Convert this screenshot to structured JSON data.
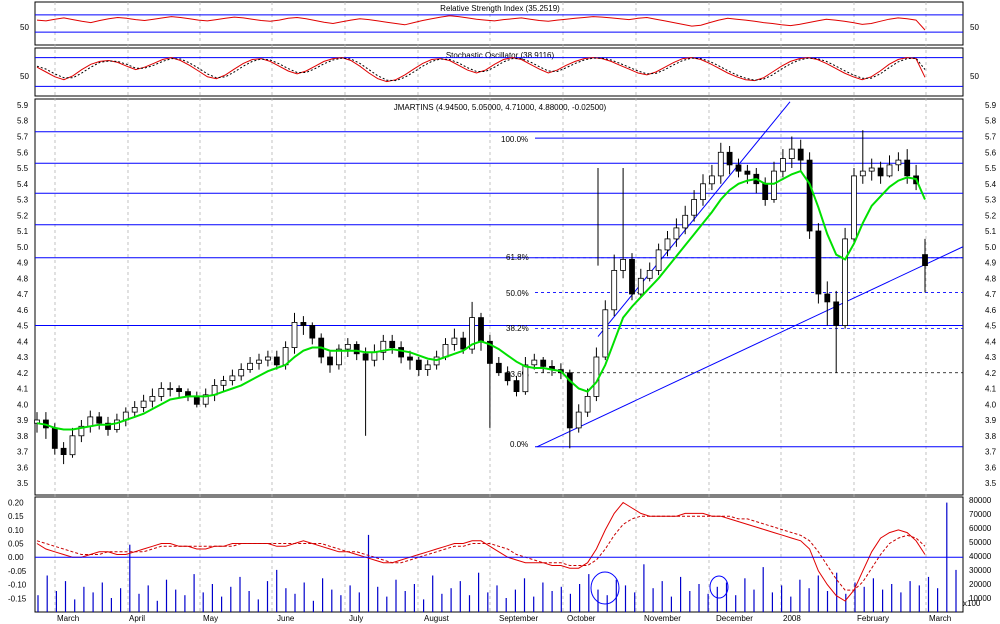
{
  "colors": {
    "background": "#ffffff",
    "panel_border": "#000000",
    "level_line": "#0000ff",
    "grid": "#b4b4b4",
    "candle": "#000000",
    "moving_average": "#00e000",
    "indicator_main": "#e00000",
    "indicator_signal": "#c80000",
    "volume": "#0000cc",
    "trendline": "#0000ff"
  },
  "months": [
    "March",
    "April",
    "May",
    "June",
    "July",
    "August",
    "September",
    "October",
    "November",
    "December",
    "2008",
    "February",
    "March"
  ],
  "chart_data": [
    {
      "type": "line",
      "title": "Relative Strength Index (35.2519)",
      "y_tick_labels": [
        "50"
      ],
      "reference_levels": [
        70,
        30
      ],
      "last_value": 35.2519,
      "series": [
        {
          "values": [
            58,
            56,
            60,
            63,
            59,
            55,
            52,
            57,
            61,
            64,
            62,
            59,
            57,
            60,
            63,
            66,
            64,
            61,
            58,
            56,
            59,
            62,
            65,
            63,
            60,
            57,
            55,
            58,
            62,
            64,
            61,
            57,
            53,
            50,
            54,
            58,
            61,
            59,
            56,
            53,
            50,
            47,
            52,
            57,
            61,
            65,
            68,
            66,
            63,
            60,
            58,
            56,
            59,
            61,
            63,
            60,
            57,
            55,
            58,
            60,
            62,
            64,
            66,
            65,
            63,
            61,
            59,
            62,
            64,
            60,
            56,
            52,
            48,
            44,
            46,
            52,
            58,
            62,
            60,
            58,
            55,
            52,
            50,
            47,
            45,
            48,
            52,
            56,
            60,
            58,
            55,
            52,
            48,
            50,
            55,
            60,
            63,
            61,
            58,
            35
          ]
        }
      ]
    },
    {
      "type": "line",
      "title": "Stochastic Oscillator (38.9116)",
      "y_tick_labels": [
        "50"
      ],
      "reference_levels": [
        80,
        20
      ],
      "last_value": 38.9116,
      "series": [
        {
          "values": [
            60,
            50,
            40,
            34,
            42,
            55,
            66,
            72,
            74,
            70,
            62,
            55,
            60,
            68,
            76,
            80,
            74,
            64,
            52,
            40,
            36,
            44,
            56,
            68,
            76,
            78,
            72,
            62,
            52,
            46,
            52,
            62,
            72,
            78,
            80,
            74,
            62,
            48,
            36,
            30,
            34,
            44,
            56,
            68,
            76,
            78,
            74,
            64,
            54,
            48,
            54,
            66,
            76,
            80,
            76,
            66,
            56,
            48,
            54,
            64,
            72,
            78,
            80,
            78,
            72,
            64,
            56,
            48,
            44,
            50,
            60,
            70,
            78,
            80,
            76,
            68,
            58,
            48,
            40,
            34,
            32,
            38,
            50,
            62,
            72,
            78,
            80,
            76,
            68,
            58,
            48,
            40,
            34,
            40,
            52,
            66,
            76,
            80,
            78,
            39
          ]
        },
        {
          "values": [
            62,
            56,
            46,
            38,
            38,
            48,
            60,
            70,
            73,
            72,
            66,
            58,
            58,
            64,
            72,
            78,
            77,
            69,
            58,
            46,
            38,
            40,
            50,
            62,
            72,
            77,
            75,
            67,
            57,
            49,
            49,
            57,
            67,
            75,
            79,
            77,
            68,
            55,
            42,
            33,
            32,
            39,
            50,
            62,
            72,
            77,
            76,
            69,
            59,
            51,
            51,
            60,
            71,
            78,
            78,
            71,
            61,
            52,
            51,
            59,
            68,
            75,
            79,
            79,
            75,
            68,
            60,
            52,
            46,
            47,
            55,
            65,
            74,
            79,
            78,
            72,
            63,
            53,
            44,
            37,
            33,
            35,
            44,
            56,
            67,
            75,
            79,
            78,
            72,
            63,
            53,
            44,
            37,
            37,
            46,
            59,
            71,
            78,
            79,
            55
          ]
        }
      ]
    },
    {
      "type": "bar",
      "title": "JMARTINS (4.94500, 5.05000, 4.71000, 4.88000, -0.02500)",
      "y_tick_labels": [
        "3.5",
        "3.6",
        "3.7",
        "3.8",
        "3.9",
        "4.0",
        "4.1",
        "4.2",
        "4.3",
        "4.4",
        "4.5",
        "4.6",
        "4.7",
        "4.8",
        "4.9",
        "5.0",
        "5.1",
        "5.2",
        "5.3",
        "5.4",
        "5.5",
        "5.6",
        "5.7",
        "5.8",
        "5.9"
      ],
      "ylim": [
        3.5,
        5.9
      ],
      "fibonacci_labels": [
        "100.0%",
        "61.8%",
        "50.0%",
        "38.2%",
        "23.6%",
        "0.0%"
      ],
      "horizontal_levels": [
        5.73,
        5.53,
        5.34,
        5.14,
        4.93,
        4.5
      ],
      "close": [
        3.9,
        3.85,
        3.72,
        3.68,
        3.8,
        3.86,
        3.92,
        3.88,
        3.84,
        3.9,
        3.95,
        3.98,
        4.02,
        4.05,
        4.1,
        4.1,
        4.08,
        4.05,
        4.0,
        4.06,
        4.12,
        4.15,
        4.18,
        4.22,
        4.26,
        4.28,
        4.3,
        4.25,
        4.36,
        4.52,
        4.5,
        4.42,
        4.3,
        4.25,
        4.35,
        4.38,
        4.32,
        4.28,
        4.33,
        4.4,
        4.36,
        4.3,
        4.28,
        4.22,
        4.25,
        4.3,
        4.38,
        4.42,
        4.35,
        4.55,
        4.4,
        4.26,
        4.2,
        4.15,
        4.08,
        4.25,
        4.28,
        4.24,
        4.22,
        4.2,
        3.85,
        3.95,
        4.05,
        4.3,
        4.6,
        4.85,
        4.92,
        4.7,
        4.8,
        4.85,
        4.98,
        5.05,
        5.12,
        5.2,
        5.3,
        5.4,
        5.45,
        5.6,
        5.52,
        5.48,
        5.46,
        5.4,
        5.3,
        5.48,
        5.56,
        5.62,
        5.55,
        5.1,
        4.7,
        4.65,
        4.5,
        5.05,
        5.45,
        5.48,
        5.5,
        5.45,
        5.52,
        5.55,
        5.45,
        5.4,
        4.88
      ],
      "open": [
        3.88,
        3.9,
        3.85,
        3.72,
        3.68,
        3.8,
        3.86,
        3.92,
        3.88,
        3.84,
        3.9,
        3.95,
        3.98,
        4.02,
        4.05,
        4.1,
        4.1,
        4.08,
        4.05,
        4.0,
        4.06,
        4.12,
        4.15,
        4.18,
        4.22,
        4.26,
        4.28,
        4.3,
        4.25,
        4.36,
        4.52,
        4.5,
        4.42,
        4.3,
        4.25,
        4.35,
        4.38,
        4.32,
        4.28,
        4.33,
        4.4,
        4.36,
        4.3,
        4.28,
        4.22,
        4.25,
        4.3,
        4.38,
        4.42,
        4.35,
        4.55,
        4.4,
        4.26,
        4.2,
        4.15,
        4.08,
        4.25,
        4.28,
        4.24,
        4.22,
        4.2,
        3.85,
        3.95,
        4.05,
        4.3,
        4.6,
        4.85,
        4.92,
        4.7,
        4.8,
        4.85,
        4.98,
        5.05,
        5.12,
        5.2,
        5.3,
        5.4,
        5.45,
        5.6,
        5.52,
        5.48,
        5.46,
        5.4,
        5.3,
        5.48,
        5.56,
        5.62,
        5.55,
        5.1,
        4.7,
        4.65,
        4.5,
        5.05,
        5.45,
        5.48,
        5.5,
        5.45,
        5.52,
        5.55,
        5.45,
        4.95
      ],
      "high": [
        3.95,
        3.95,
        3.88,
        3.76,
        3.85,
        3.9,
        3.96,
        3.95,
        3.92,
        3.94,
        3.98,
        4.02,
        4.06,
        4.1,
        4.14,
        4.14,
        4.12,
        4.1,
        4.08,
        4.1,
        4.16,
        4.18,
        4.22,
        4.26,
        4.3,
        4.32,
        4.34,
        4.34,
        4.4,
        4.58,
        4.56,
        4.52,
        4.45,
        4.34,
        4.38,
        4.42,
        4.4,
        4.36,
        4.38,
        4.44,
        4.44,
        4.4,
        4.34,
        4.3,
        4.28,
        4.34,
        4.42,
        4.48,
        4.46,
        4.65,
        4.58,
        4.44,
        4.3,
        4.24,
        4.18,
        4.3,
        4.32,
        4.3,
        4.28,
        4.26,
        4.22,
        4.0,
        4.1,
        4.36,
        4.66,
        4.95,
        5.5,
        4.96,
        4.86,
        4.9,
        5.02,
        5.1,
        5.18,
        5.26,
        5.36,
        5.46,
        5.52,
        5.66,
        5.64,
        5.56,
        5.52,
        5.5,
        5.44,
        5.54,
        5.62,
        5.7,
        5.68,
        5.6,
        5.15,
        4.78,
        4.72,
        5.12,
        5.5,
        5.74,
        5.56,
        5.54,
        5.58,
        5.6,
        5.62,
        5.52,
        5.05
      ],
      "low": [
        3.82,
        3.78,
        3.68,
        3.62,
        3.66,
        3.76,
        3.82,
        3.84,
        3.8,
        3.82,
        3.86,
        3.92,
        3.95,
        3.98,
        4.02,
        4.05,
        4.04,
        4.02,
        3.98,
        3.98,
        4.02,
        4.08,
        4.12,
        4.15,
        4.2,
        4.22,
        4.24,
        4.22,
        4.22,
        4.32,
        4.44,
        4.38,
        4.26,
        4.2,
        4.22,
        4.3,
        4.28,
        3.8,
        4.24,
        4.28,
        4.32,
        4.26,
        4.22,
        4.18,
        4.18,
        4.22,
        4.28,
        4.34,
        4.32,
        4.32,
        4.34,
        3.85,
        4.18,
        4.12,
        4.05,
        4.06,
        4.22,
        4.2,
        4.18,
        4.16,
        3.72,
        3.82,
        3.92,
        4.02,
        4.28,
        4.56,
        4.8,
        4.66,
        4.68,
        4.78,
        4.82,
        4.94,
        5.0,
        5.08,
        5.16,
        5.26,
        5.36,
        5.4,
        5.46,
        5.44,
        5.4,
        5.34,
        5.26,
        5.28,
        5.44,
        5.5,
        5.48,
        5.05,
        4.64,
        4.5,
        4.2,
        4.48,
        5.02,
        5.4,
        5.42,
        5.4,
        5.44,
        5.48,
        5.4,
        5.36,
        4.71
      ],
      "moving_average": [
        3.88,
        3.87,
        3.85,
        3.84,
        3.84,
        3.85,
        3.86,
        3.87,
        3.87,
        3.88,
        3.9,
        3.92,
        3.94,
        3.97,
        4.0,
        4.03,
        4.04,
        4.05,
        4.05,
        4.05,
        4.06,
        4.08,
        4.1,
        4.12,
        4.15,
        4.18,
        4.21,
        4.23,
        4.25,
        4.3,
        4.34,
        4.36,
        4.36,
        4.34,
        4.34,
        4.34,
        4.34,
        4.33,
        4.33,
        4.34,
        4.35,
        4.34,
        4.33,
        4.31,
        4.29,
        4.28,
        4.3,
        4.32,
        4.34,
        4.38,
        4.4,
        4.38,
        4.35,
        4.31,
        4.27,
        4.24,
        4.23,
        4.23,
        4.22,
        4.21,
        4.15,
        4.1,
        4.08,
        4.14,
        4.25,
        4.4,
        4.55,
        4.62,
        4.68,
        4.74,
        4.8,
        4.87,
        4.94,
        5.01,
        5.08,
        5.15,
        5.22,
        5.3,
        5.36,
        5.4,
        5.42,
        5.43,
        5.4,
        5.4,
        5.43,
        5.46,
        5.48,
        5.4,
        5.25,
        5.08,
        4.95,
        4.92,
        5.02,
        5.15,
        5.26,
        5.32,
        5.38,
        5.42,
        5.44,
        5.43,
        5.3
      ]
    },
    {
      "type": "line",
      "title": "",
      "y_tick_labels": [
        "0.20",
        "0.15",
        "0.10",
        "0.05",
        "0.00",
        "-0.05",
        "-0.10",
        "-0.15"
      ],
      "ylim": [
        -0.2,
        0.22
      ],
      "series": [
        {
          "values": [
            0.05,
            0.03,
            0.02,
            0.01,
            0.0,
            0.0,
            0.01,
            0.02,
            0.02,
            0.01,
            0.01,
            0.02,
            0.03,
            0.04,
            0.05,
            0.05,
            0.04,
            0.04,
            0.03,
            0.03,
            0.04,
            0.04,
            0.05,
            0.05,
            0.05,
            0.05,
            0.05,
            0.04,
            0.04,
            0.05,
            0.06,
            0.05,
            0.04,
            0.03,
            0.02,
            0.02,
            0.01,
            0.0,
            -0.01,
            -0.02,
            -0.02,
            -0.01,
            0.0,
            0.01,
            0.02,
            0.03,
            0.04,
            0.05,
            0.05,
            0.06,
            0.06,
            0.04,
            0.02,
            0.0,
            -0.01,
            -0.02,
            -0.02,
            -0.02,
            -0.03,
            -0.03,
            -0.04,
            -0.04,
            -0.02,
            0.03,
            0.1,
            0.16,
            0.2,
            0.18,
            0.16,
            0.15,
            0.15,
            0.15,
            0.15,
            0.16,
            0.16,
            0.16,
            0.15,
            0.15,
            0.14,
            0.13,
            0.12,
            0.11,
            0.1,
            0.09,
            0.08,
            0.07,
            0.06,
            0.03,
            -0.05,
            -0.1,
            -0.14,
            -0.16,
            -0.12,
            -0.05,
            0.02,
            0.07,
            0.09,
            0.1,
            0.09,
            0.06,
            0.01
          ]
        },
        {
          "values": [
            0.06,
            0.05,
            0.04,
            0.03,
            0.02,
            0.01,
            0.01,
            0.01,
            0.02,
            0.02,
            0.02,
            0.02,
            0.02,
            0.03,
            0.04,
            0.04,
            0.04,
            0.04,
            0.04,
            0.04,
            0.04,
            0.04,
            0.04,
            0.05,
            0.05,
            0.05,
            0.05,
            0.05,
            0.05,
            0.05,
            0.05,
            0.05,
            0.05,
            0.04,
            0.03,
            0.02,
            0.02,
            0.01,
            0.0,
            -0.01,
            -0.02,
            -0.02,
            -0.01,
            0.0,
            0.01,
            0.02,
            0.03,
            0.04,
            0.04,
            0.05,
            0.05,
            0.05,
            0.04,
            0.03,
            0.01,
            0.0,
            -0.01,
            -0.02,
            -0.02,
            -0.02,
            -0.03,
            -0.03,
            -0.03,
            -0.01,
            0.03,
            0.08,
            0.12,
            0.14,
            0.15,
            0.15,
            0.15,
            0.15,
            0.15,
            0.15,
            0.15,
            0.15,
            0.15,
            0.15,
            0.15,
            0.14,
            0.14,
            0.13,
            0.12,
            0.11,
            0.1,
            0.09,
            0.08,
            0.06,
            0.02,
            -0.03,
            -0.08,
            -0.12,
            -0.12,
            -0.09,
            -0.04,
            0.01,
            0.05,
            0.07,
            0.08,
            0.07,
            0.04
          ]
        }
      ]
    },
    {
      "type": "bar",
      "title": "",
      "y_tick_labels": [
        "80000",
        "70000",
        "60000",
        "50000",
        "40000",
        "30000",
        "20000",
        "10000"
      ],
      "units_label": "x100",
      "ylim": [
        0,
        82000
      ],
      "values": [
        12000,
        26000,
        15000,
        22000,
        9000,
        18000,
        14000,
        21000,
        10000,
        17000,
        48000,
        13000,
        19000,
        8000,
        23000,
        16000,
        12000,
        27000,
        14000,
        20000,
        11000,
        18000,
        25000,
        15000,
        9000,
        22000,
        30000,
        17000,
        13000,
        21000,
        8000,
        24000,
        16000,
        12000,
        19000,
        14000,
        55000,
        18000,
        11000,
        23000,
        15000,
        20000,
        9000,
        26000,
        13000,
        17000,
        22000,
        12000,
        28000,
        14000,
        19000,
        10000,
        16000,
        24000,
        11000,
        21000,
        15000,
        18000,
        13000,
        20000,
        27000,
        16000,
        12000,
        23000,
        19000,
        14000,
        34000,
        17000,
        22000,
        11000,
        25000,
        15000,
        20000,
        13000,
        18000,
        21000,
        12000,
        24000,
        16000,
        32000,
        14000,
        19000,
        11000,
        23000,
        17000,
        26000,
        15000,
        28000,
        13000,
        21000,
        18000,
        24000,
        16000,
        20000,
        14000,
        22000,
        19000,
        25000,
        17000,
        78000,
        30000
      ]
    }
  ]
}
